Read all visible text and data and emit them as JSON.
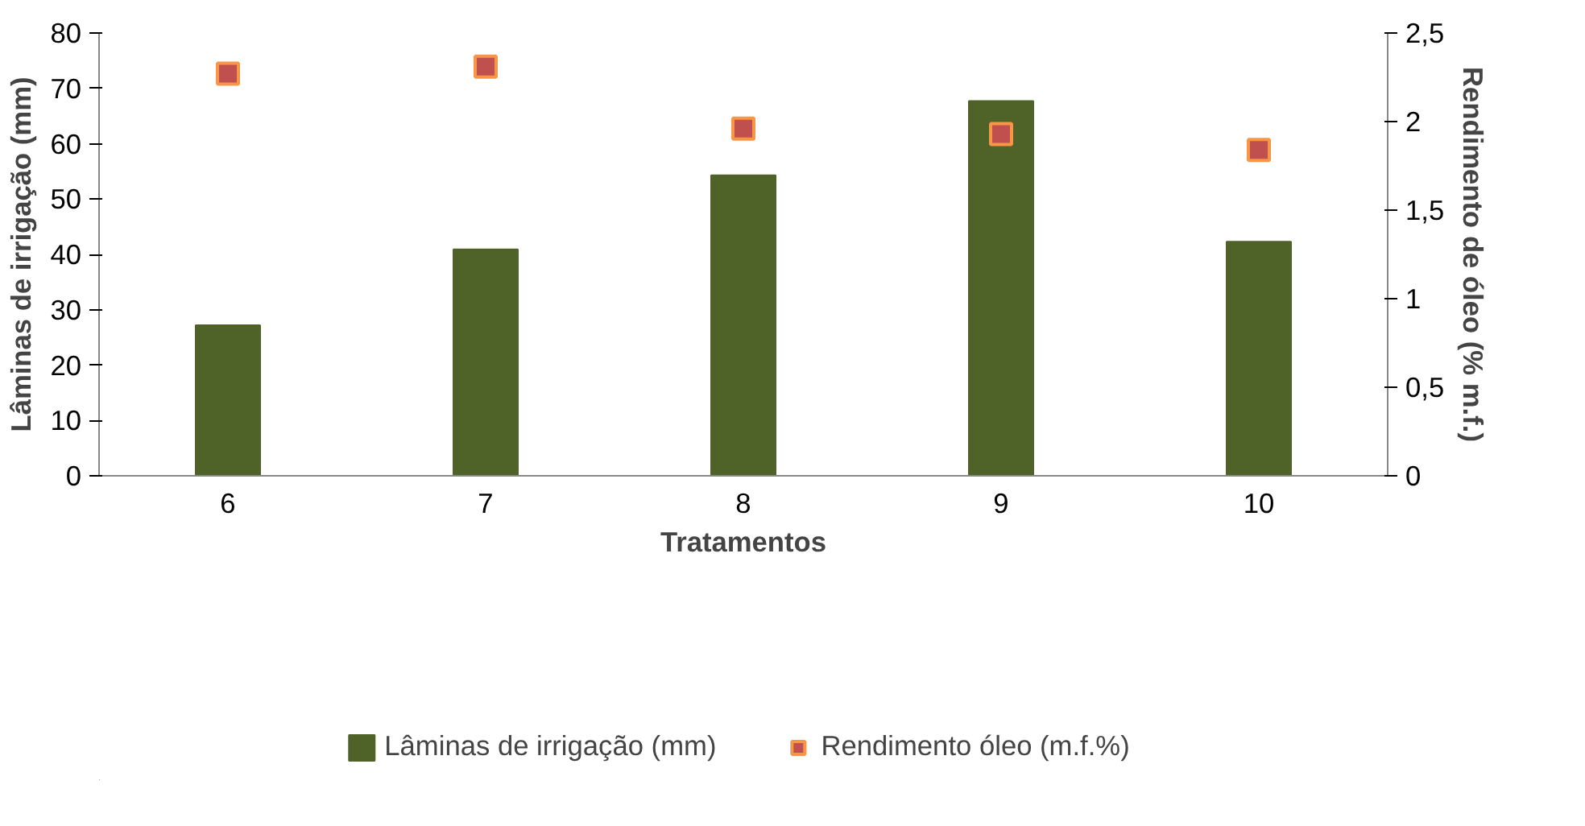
{
  "chart_data": {
    "type": "bar",
    "xlabel": "Tratamentos",
    "ylabel": "Lâminas de irrigação (mm)",
    "y2label": "Rendimento de óleo (% m.f.)",
    "categories": [
      "6",
      "7",
      "8",
      "9",
      "10"
    ],
    "series": [
      {
        "name": "Lâminas de irrigação (mm)",
        "color": "#4f6228",
        "values": [
          27.2,
          40.9,
          54.3,
          67.7,
          42.3
        ]
      },
      {
        "name": "Rendimento óleo (m.f.%)",
        "type": "scatter",
        "color": "#c0504d",
        "axis": "y2",
        "marker": "square",
        "values": [
          2.27,
          2.31,
          1.96,
          1.93,
          1.84
        ]
      }
    ],
    "ylim": [
      0,
      80
    ],
    "yticks": [
      0,
      10,
      20,
      30,
      40,
      50,
      60,
      70,
      80
    ],
    "y2lim": [
      0,
      2.5
    ],
    "y2ticks": [
      0,
      {
        "value": 0.5,
        "label": "0,5"
      },
      1,
      {
        "value": 1.5,
        "label": "1,5"
      },
      2,
      {
        "value": 2.5,
        "label": "2,5"
      }
    ],
    "grid": false,
    "legend": "bottom"
  }
}
